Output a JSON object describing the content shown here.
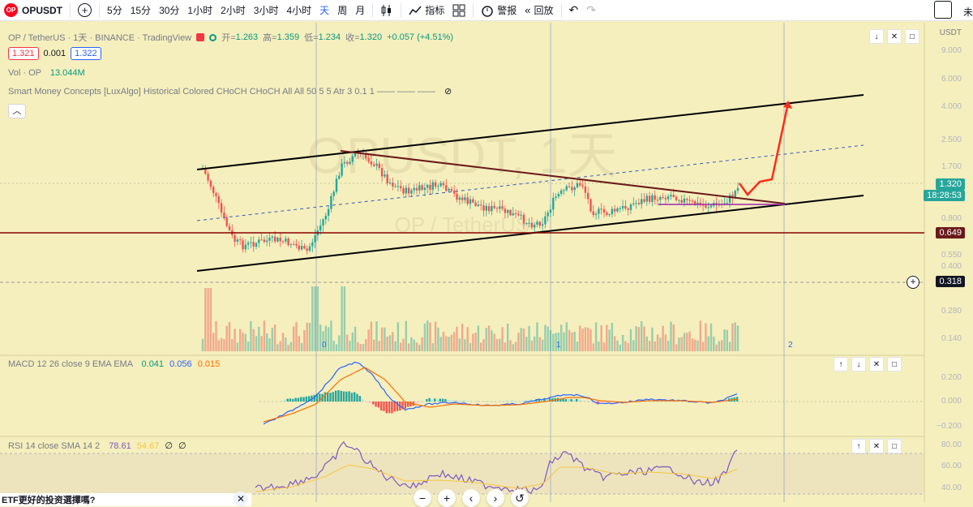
{
  "toolbar": {
    "symbol": "OPUSDT",
    "logo_text": "OP",
    "timeframes": [
      "5分",
      "15分",
      "30分",
      "1小时",
      "2小时",
      "3小时",
      "4小时",
      "天",
      "周",
      "月"
    ],
    "active_timeframe": "天",
    "indicators_label": "指标",
    "alert_label": "警报",
    "replay_label": "回放",
    "unsaved_label": "未"
  },
  "legend": {
    "title": "OP / TetherUS · 1天 · BINANCE · TradingView",
    "open_label": "开=",
    "open": "1.263",
    "high_label": "高=",
    "high": "1.359",
    "low_label": "低=",
    "low": "1.234",
    "close_label": "收=",
    "close": "1.320",
    "change": "+0.057 (+4.51%)",
    "bid": "1.321",
    "spread": "0.001",
    "ask": "1.322"
  },
  "volume": {
    "label": "Vol · OP",
    "value": "13.044M"
  },
  "smc": {
    "label": "Smart Money Concepts [LuxAlgo] Historical Colored CHoCH CHoCH All All 50 5 5 Atr 3 0.1 1 —— —— ——"
  },
  "watermark": {
    "symbol": "OPUSDT, 1天",
    "pair": "OP / TetherUS"
  },
  "price_axis": {
    "currency": "USDT",
    "ticks": [
      "9.000",
      "6.000",
      "4.000",
      "2.500",
      "1.700",
      "1.200",
      "0.800",
      "0.550",
      "0.400",
      "0.280",
      "0.200",
      "0.140"
    ],
    "current_price": "1.320",
    "countdown": "18:28:53",
    "line_price": "0.649",
    "crosshair_price": "0.318"
  },
  "time_marks": [
    "0",
    "1",
    "2"
  ],
  "macd": {
    "label": "MACD 12 26 close 9 EMA EMA",
    "v1": "0.041",
    "v2": "0.056",
    "v3": "0.015",
    "ticks": [
      "0.200",
      "0.000",
      "−0.200"
    ]
  },
  "rsi": {
    "label": "RSI 14 close SMA 14 2",
    "v1": "78.61",
    "v2": "54.67",
    "v3": "∅",
    "v4": "∅",
    "ticks": [
      "80.00",
      "60.00",
      "40.00"
    ]
  },
  "popup": {
    "text": "ETF更好的投资選擇嗎?"
  },
  "colors": {
    "background": "#f5efbd",
    "up": "#26a69a",
    "down": "#ef5350",
    "channel": "#000000",
    "resistance": "#6b1a1a",
    "support_line": "#8b0000",
    "projection": "#ff2a1a"
  }
}
